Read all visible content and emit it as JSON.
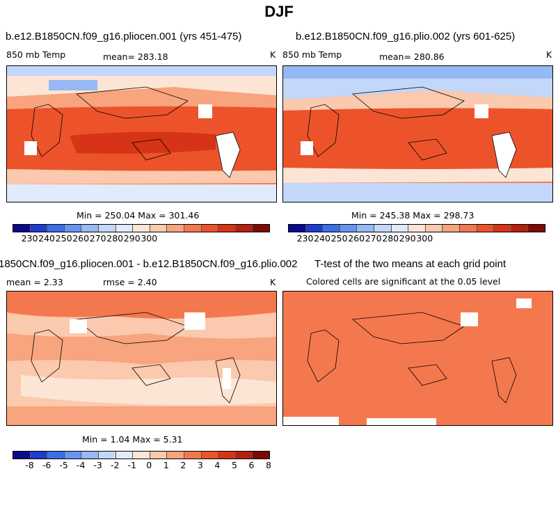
{
  "title": "DJF",
  "panels": [
    {
      "title": "b.e12.B1850CN.f09_g16.pliocen.001 (yrs 451-475)",
      "left_label": "850 mb Temp",
      "center_label": "mean= 283.18",
      "units": "K",
      "minmax": "Min = 250.04 Max = 301.46"
    },
    {
      "title": "b.e12.B1850CN.f09_g16.plio.002 (yrs 601-625)",
      "left_label": "850 mb Temp",
      "center_label": "mean= 280.86",
      "units": "K",
      "minmax": "Min = 245.38 Max = 298.73"
    },
    {
      "title": "1850CN.f09_g16.pliocen.001 - b.e12.B1850CN.f09_g16.plio.002",
      "left_label": "mean = 2.33",
      "center_label": "rmse = 2.40",
      "units": "K",
      "minmax": "Min = 1.04 Max = 5.31"
    },
    {
      "title": "T-test of the two means at each grid point",
      "subtitle": "Colored cells are significant at the 0.05 level"
    }
  ],
  "temp_scale": {
    "ticks": [
      "230",
      "240",
      "250",
      "260",
      "270",
      "280",
      "290",
      "300"
    ],
    "colors": [
      "#0a0a8c",
      "#1e3ccd",
      "#3c6ee6",
      "#6495f0",
      "#96b9f5",
      "#c3d7fa",
      "#e1ebfc",
      "#fde5d5",
      "#fbc9ad",
      "#f8a47e",
      "#f4784e",
      "#ec532b",
      "#d63416",
      "#b3200e",
      "#7e0a05"
    ]
  },
  "diff_scale": {
    "ticks": [
      "-8",
      "-6",
      "-5",
      "-4",
      "-3",
      "-2",
      "-1",
      "0",
      "1",
      "2",
      "3",
      "4",
      "5",
      "6",
      "8"
    ],
    "colors": [
      "#0a0a8c",
      "#1e3ccd",
      "#3c6ee6",
      "#6495f0",
      "#96b9f5",
      "#c3d7fa",
      "#e1ebfc",
      "#fde5d5",
      "#fbc9ad",
      "#f8a47e",
      "#f4784e",
      "#ec532b",
      "#d63416",
      "#b3200e",
      "#7e0a05"
    ]
  }
}
